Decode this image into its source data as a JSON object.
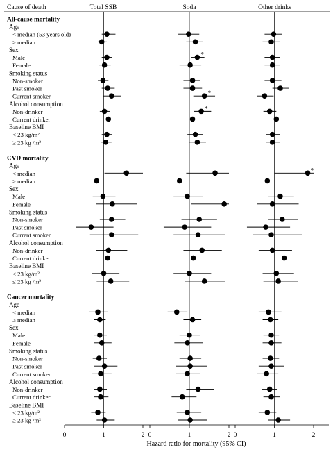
{
  "chart_data": {
    "type": "forest",
    "column_headers": [
      "Cause of death",
      "Total SSB",
      "Soda",
      "Other drinks"
    ],
    "xlabel": "Hazard ratio for mortality (95% CI)",
    "xlim": [
      0,
      2
    ],
    "xticks": [
      "0",
      "1",
      "2"
    ],
    "reference_line": 1,
    "significance_marker": "*",
    "rows": [
      {
        "kind": "section",
        "label": "All-cause mortality"
      },
      {
        "kind": "group",
        "label": "Age"
      },
      {
        "kind": "item",
        "label": "< median (53 years old)",
        "est": [
          [
            1.08,
            0.95,
            1.3
          ],
          [
            0.98,
            0.72,
            1.25
          ],
          [
            0.98,
            0.75,
            1.2
          ]
        ]
      },
      {
        "kind": "item",
        "label": "≥ median",
        "est": [
          [
            0.95,
            0.85,
            1.08
          ],
          [
            1.15,
            0.92,
            1.35
          ],
          [
            0.92,
            0.7,
            1.15
          ]
        ]
      },
      {
        "kind": "group",
        "label": "Sex"
      },
      {
        "kind": "item",
        "label": "Male",
        "sig": [
          false,
          true,
          false
        ],
        "est": [
          [
            1.08,
            0.95,
            1.22
          ],
          [
            1.2,
            1.05,
            1.38
          ],
          [
            0.95,
            0.75,
            1.15
          ]
        ]
      },
      {
        "kind": "item",
        "label": "Female",
        "est": [
          [
            1.02,
            0.88,
            1.18
          ],
          [
            1.02,
            0.75,
            1.3
          ],
          [
            0.95,
            0.75,
            1.15
          ]
        ]
      },
      {
        "kind": "group",
        "label": "Smoking status"
      },
      {
        "kind": "item",
        "label": "Non-smoker",
        "est": [
          [
            0.98,
            0.85,
            1.12
          ],
          [
            1.08,
            0.85,
            1.28
          ],
          [
            0.95,
            0.75,
            1.18
          ]
        ]
      },
      {
        "kind": "item",
        "label": "Past smoker",
        "est": [
          [
            1.1,
            0.95,
            1.28
          ],
          [
            1.08,
            0.85,
            1.32
          ],
          [
            1.15,
            0.95,
            1.38
          ]
        ]
      },
      {
        "kind": "item",
        "label": "Current smoker",
        "sig": [
          false,
          true,
          false
        ],
        "est": [
          [
            1.2,
            0.98,
            1.45
          ],
          [
            1.38,
            1.1,
            1.65
          ],
          [
            0.75,
            0.55,
            0.98
          ]
        ]
      },
      {
        "kind": "group",
        "label": "Alcohol consumption"
      },
      {
        "kind": "item",
        "label": "Non-drinker",
        "sig": [
          false,
          true,
          false
        ],
        "est": [
          [
            1.02,
            0.9,
            1.15
          ],
          [
            1.3,
            1.12,
            1.55
          ],
          [
            0.88,
            0.72,
            1.05
          ]
        ]
      },
      {
        "kind": "item",
        "label": "Current drinker",
        "est": [
          [
            1.12,
            0.95,
            1.3
          ],
          [
            1.08,
            0.85,
            1.3
          ],
          [
            1.05,
            0.85,
            1.25
          ]
        ]
      },
      {
        "kind": "group",
        "label": "Baseline BMI"
      },
      {
        "kind": "item",
        "label": "< 23 kg/m²",
        "est": [
          [
            1.08,
            0.95,
            1.22
          ],
          [
            1.15,
            0.95,
            1.35
          ],
          [
            0.95,
            0.78,
            1.15
          ]
        ]
      },
      {
        "kind": "item",
        "label": "≥ 23 kg /m²",
        "est": [
          [
            1.05,
            0.92,
            1.2
          ],
          [
            1.2,
            1.0,
            1.42
          ],
          [
            0.95,
            0.78,
            1.15
          ]
        ]
      },
      {
        "kind": "gap"
      },
      {
        "kind": "section",
        "label": "CVD mortality"
      },
      {
        "kind": "group",
        "label": "Age"
      },
      {
        "kind": "item",
        "label": "< median",
        "sig": [
          false,
          false,
          true
        ],
        "est": [
          [
            1.58,
            1.02,
            2.0
          ],
          [
            1.65,
            0.92,
            2.0
          ],
          [
            1.85,
            1.0,
            2.0
          ]
        ]
      },
      {
        "kind": "item",
        "label": "≥ median",
        "est": [
          [
            0.82,
            0.6,
            1.15
          ],
          [
            0.75,
            0.45,
            1.1
          ],
          [
            0.82,
            0.55,
            1.15
          ]
        ]
      },
      {
        "kind": "group",
        "label": "Sex"
      },
      {
        "kind": "item",
        "label": "Male",
        "est": [
          [
            0.98,
            0.72,
            1.3
          ],
          [
            0.95,
            0.6,
            1.35
          ],
          [
            1.15,
            0.85,
            1.5
          ]
        ]
      },
      {
        "kind": "item",
        "label": "Female",
        "est": [
          [
            1.22,
            0.8,
            1.85
          ],
          [
            1.88,
            1.05,
            2.0
          ],
          [
            0.95,
            0.55,
            1.62
          ]
        ]
      },
      {
        "kind": "group",
        "label": "Smoking status"
      },
      {
        "kind": "item",
        "label": "Non-smoker",
        "est": [
          [
            1.2,
            0.9,
            1.55
          ],
          [
            1.25,
            0.8,
            1.7
          ],
          [
            1.2,
            0.85,
            1.6
          ]
        ]
      },
      {
        "kind": "item",
        "label": "Past smoker",
        "est": [
          [
            0.68,
            0.3,
            1.25
          ],
          [
            0.88,
            0.35,
            1.55
          ],
          [
            0.78,
            0.3,
            1.4
          ]
        ]
      },
      {
        "kind": "item",
        "label": "Current smoker",
        "est": [
          [
            1.2,
            0.65,
            1.88
          ],
          [
            1.22,
            0.6,
            1.9
          ],
          [
            0.92,
            0.45,
            1.7
          ]
        ]
      },
      {
        "kind": "group",
        "label": "Alcohol consumption"
      },
      {
        "kind": "item",
        "label": "Non-drinker",
        "est": [
          [
            1.12,
            0.8,
            1.6
          ],
          [
            1.32,
            0.85,
            1.82
          ],
          [
            0.95,
            0.6,
            1.45
          ]
        ]
      },
      {
        "kind": "item",
        "label": "Current drinker",
        "est": [
          [
            1.1,
            0.75,
            1.55
          ],
          [
            1.1,
            0.7,
            1.65
          ],
          [
            1.25,
            0.8,
            1.85
          ]
        ]
      },
      {
        "kind": "group",
        "label": "Baseline BMI"
      },
      {
        "kind": "item",
        "label": "< 23 kg/m²",
        "est": [
          [
            1.0,
            0.7,
            1.4
          ],
          [
            1.0,
            0.6,
            1.55
          ],
          [
            1.05,
            0.7,
            1.5
          ]
        ]
      },
      {
        "kind": "item",
        "label": "≤ 23 kg /m²",
        "est": [
          [
            1.18,
            0.82,
            1.65
          ],
          [
            1.38,
            0.88,
            1.9
          ],
          [
            1.1,
            0.72,
            1.6
          ]
        ]
      },
      {
        "kind": "gap"
      },
      {
        "kind": "section",
        "label": "Cancer mortality"
      },
      {
        "kind": "group",
        "label": "Age"
      },
      {
        "kind": "item",
        "label": "< median",
        "est": [
          [
            0.85,
            0.62,
            1.1
          ],
          [
            0.68,
            0.45,
            0.95
          ],
          [
            0.85,
            0.6,
            1.18
          ]
        ]
      },
      {
        "kind": "item",
        "label": "≥ median",
        "est": [
          [
            0.9,
            0.75,
            1.05
          ],
          [
            1.08,
            0.85,
            1.3
          ],
          [
            0.9,
            0.7,
            1.1
          ]
        ]
      },
      {
        "kind": "group",
        "label": "Sex"
      },
      {
        "kind": "item",
        "label": "Male",
        "est": [
          [
            0.9,
            0.75,
            1.08
          ],
          [
            1.0,
            0.75,
            1.28
          ],
          [
            0.92,
            0.72,
            1.12
          ]
        ]
      },
      {
        "kind": "item",
        "label": "Female",
        "est": [
          [
            0.95,
            0.75,
            1.2
          ],
          [
            0.95,
            0.62,
            1.35
          ],
          [
            0.92,
            0.7,
            1.18
          ]
        ]
      },
      {
        "kind": "group",
        "label": "Smoking status"
      },
      {
        "kind": "item",
        "label": "Non-smoker",
        "est": [
          [
            0.88,
            0.72,
            1.08
          ],
          [
            1.02,
            0.75,
            1.3
          ],
          [
            0.9,
            0.7,
            1.12
          ]
        ]
      },
      {
        "kind": "item",
        "label": "Past smoker",
        "est": [
          [
            1.02,
            0.75,
            1.35
          ],
          [
            1.02,
            0.65,
            1.45
          ],
          [
            0.92,
            0.6,
            1.25
          ]
        ]
      },
      {
        "kind": "item",
        "label": "Current smoker",
        "est": [
          [
            0.92,
            0.7,
            1.2
          ],
          [
            0.95,
            0.65,
            1.28
          ],
          [
            0.8,
            0.55,
            1.1
          ]
        ]
      },
      {
        "kind": "group",
        "label": "Alcohol consumption"
      },
      {
        "kind": "item",
        "label": "Non-drinker",
        "est": [
          [
            0.9,
            0.75,
            1.08
          ],
          [
            1.22,
            0.92,
            1.62
          ],
          [
            0.88,
            0.68,
            1.08
          ]
        ]
      },
      {
        "kind": "item",
        "label": "Current drinker",
        "est": [
          [
            0.92,
            0.75,
            1.12
          ],
          [
            0.82,
            0.55,
            1.18
          ],
          [
            0.92,
            0.72,
            1.15
          ]
        ]
      },
      {
        "kind": "group",
        "label": "Baseline BMI"
      },
      {
        "kind": "item",
        "label": "< 23 kg/m²",
        "est": [
          [
            0.85,
            0.68,
            1.05
          ],
          [
            0.95,
            0.68,
            1.3
          ],
          [
            0.82,
            0.6,
            1.05
          ]
        ]
      },
      {
        "kind": "item",
        "label": "≥ 23 kg /m²",
        "est": [
          [
            1.02,
            0.82,
            1.28
          ],
          [
            1.02,
            0.72,
            1.45
          ],
          [
            1.1,
            0.85,
            1.4
          ]
        ]
      }
    ]
  }
}
